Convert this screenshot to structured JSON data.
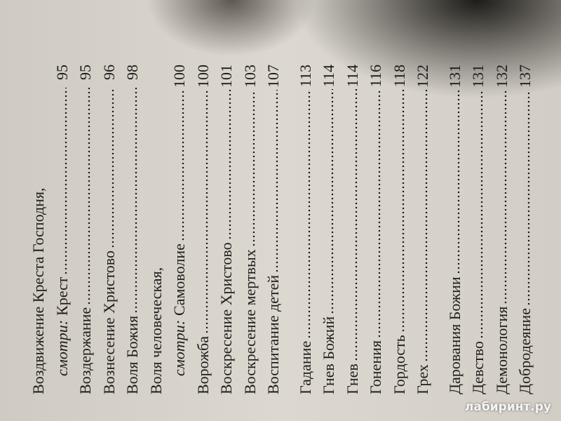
{
  "index": {
    "groups": [
      {
        "entries": [
          {
            "text": "Воздвижение Креста Господня,"
          },
          {
            "see": "смотри:",
            "text": "Крест",
            "page": 95
          },
          {
            "text": "Воздержание",
            "page": 95
          },
          {
            "text": "Вознесение Христово",
            "page": 96
          },
          {
            "text": "Воля Божия",
            "page": 98
          },
          {
            "text": "Воля человеческая,"
          },
          {
            "see": "смотри:",
            "text": "Самоволие",
            "page": 100
          },
          {
            "text": "Ворожба",
            "page": 100
          },
          {
            "text": "Воскресение Христово",
            "page": 101
          },
          {
            "text": "Воскресение мертвых",
            "page": 103
          },
          {
            "text": "Воспитание детей",
            "page": 107
          }
        ]
      },
      {
        "entries": [
          {
            "text": "Гадание",
            "page": 113
          },
          {
            "text": "Гнев Божий",
            "page": 114
          },
          {
            "text": "Гнев",
            "page": 114
          },
          {
            "text": "Гонения",
            "page": 116
          },
          {
            "text": "Гордость",
            "page": 118
          },
          {
            "text": "Грех",
            "page": 122
          }
        ]
      },
      {
        "entries": [
          {
            "text": "Дарования Божии",
            "page": 131
          },
          {
            "text": "Девство",
            "page": 131
          },
          {
            "text": "Демонология",
            "page": 132
          },
          {
            "text": "Добродеяние",
            "page": 137
          }
        ]
      }
    ]
  },
  "watermark": "лабиринт.ру"
}
